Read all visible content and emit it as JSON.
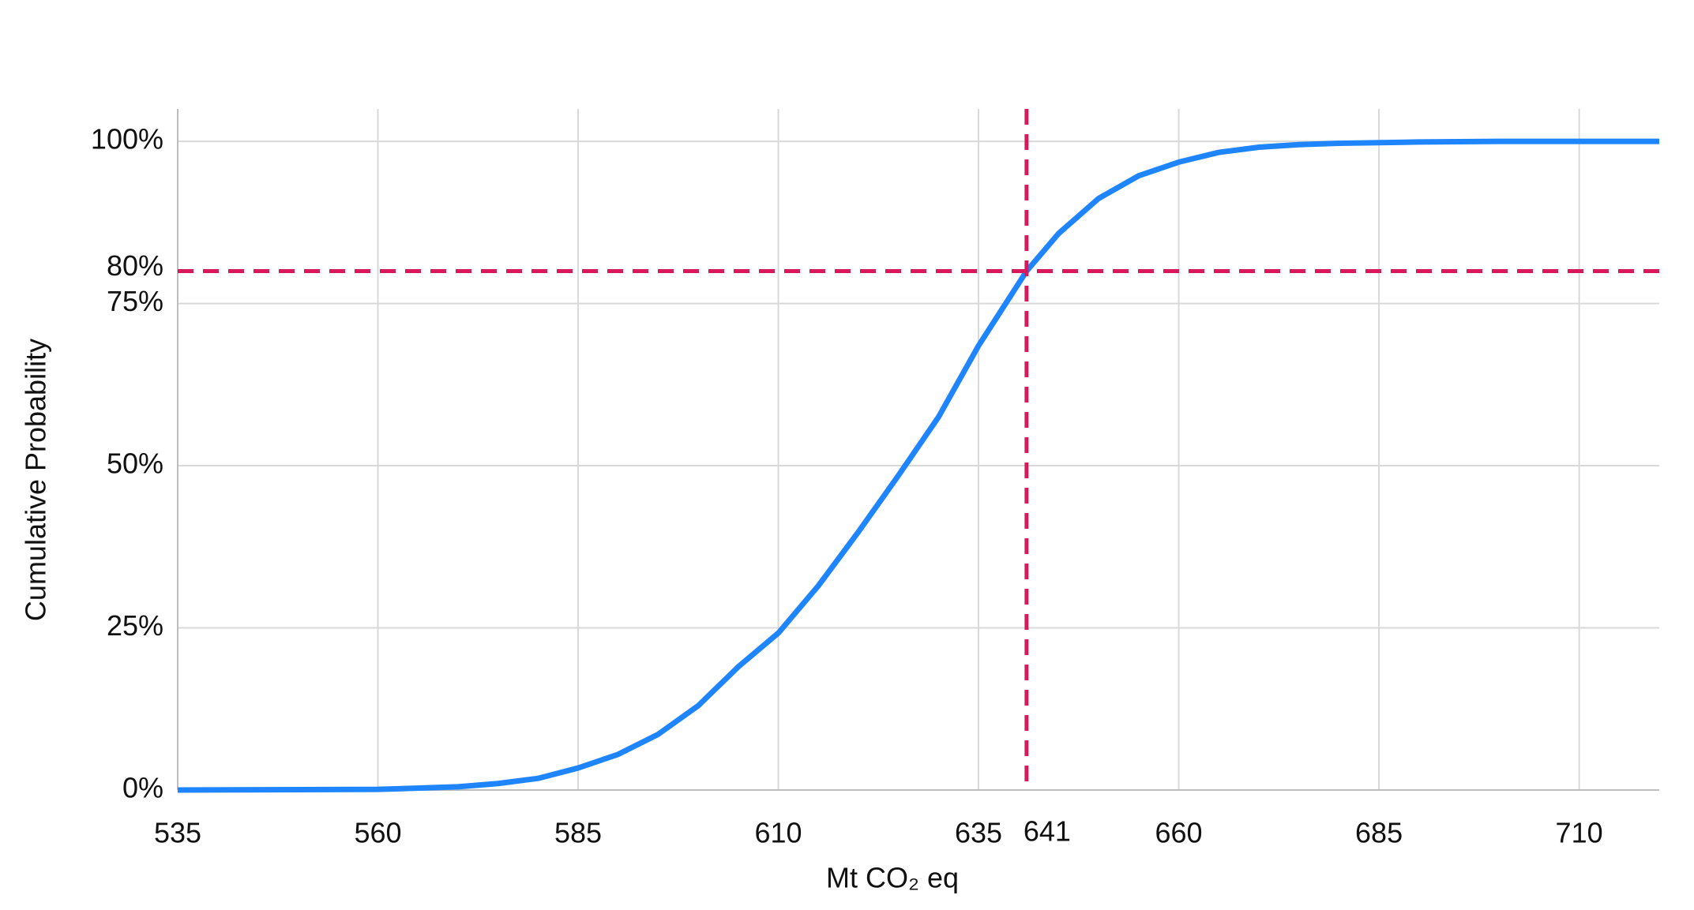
{
  "chart_data": {
    "type": "line",
    "x_label": "Mt CO₂ eq",
    "y_label": "Cumulative Probability",
    "x": [
      535,
      560,
      570,
      575,
      580,
      585,
      590,
      595,
      600,
      605,
      610,
      615,
      620,
      625,
      630,
      635,
      641,
      645,
      650,
      655,
      660,
      665,
      670,
      675,
      680,
      690,
      700,
      720
    ],
    "series": [
      {
        "name": "Cumulative Probability",
        "color": "#1f85ff",
        "values": [
          0,
          0.1,
          0.5,
          1,
          1.8,
          3.4,
          5.5,
          8.6,
          13,
          19,
          24.2,
          31.5,
          39.8,
          48.5,
          57.5,
          68.5,
          80,
          85.8,
          91.2,
          94.7,
          96.8,
          98.3,
          99.1,
          99.5,
          99.7,
          99.9,
          100,
          100
        ]
      }
    ],
    "xlim": [
      535,
      720
    ],
    "ylim": [
      0,
      105
    ],
    "xticks": [
      535,
      560,
      585,
      610,
      635,
      660,
      685,
      710
    ],
    "yticks": [
      {
        "value": 0,
        "label": "0%"
      },
      {
        "value": 25,
        "label": "25%"
      },
      {
        "value": 50,
        "label": "50%"
      },
      {
        "value": 75,
        "label": "75%"
      },
      {
        "value": 100,
        "label": "100%"
      }
    ],
    "grid": true,
    "reference_lines": {
      "color": "#d6195b",
      "x": 641,
      "y": {
        "value": 80,
        "label": "80%"
      }
    }
  }
}
